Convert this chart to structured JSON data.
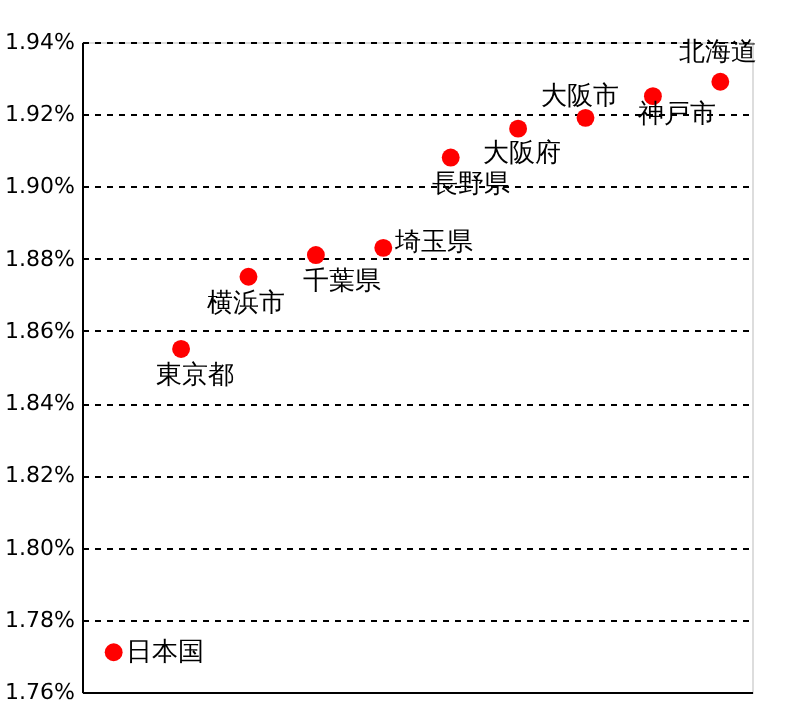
{
  "chart_data": {
    "type": "scatter",
    "categories": [
      null,
      null,
      null,
      null,
      null,
      null,
      null,
      null,
      null,
      null
    ],
    "series": [
      {
        "color": "#ff0000",
        "values": [
          1.771,
          1.855,
          1.875,
          1.881,
          1.883,
          1.908,
          1.916,
          1.919,
          1.925,
          1.929
        ]
      }
    ],
    "annotations": [
      "日本国",
      "東京都",
      "横浜市",
      "千葉県",
      "埼玉県",
      "長野県",
      "大阪府",
      "大阪市",
      "神戸市",
      "北海道"
    ],
    "ylim": [
      1.76,
      1.94
    ],
    "yticks": [
      {
        "value": 1.76,
        "label": "1.76%"
      },
      {
        "value": 1.78,
        "label": "1.78%"
      },
      {
        "value": 1.8,
        "label": "1.80%"
      },
      {
        "value": 1.82,
        "label": "1.82%"
      },
      {
        "value": 1.84,
        "label": "1.84%"
      },
      {
        "value": 1.86,
        "label": "1.86%"
      },
      {
        "value": 1.88,
        "label": "1.88%"
      },
      {
        "value": 1.9,
        "label": "1.90%"
      },
      {
        "value": 1.92,
        "label": "1.92%"
      },
      {
        "value": 1.94,
        "label": "1.94%"
      }
    ],
    "grid": "y"
  }
}
